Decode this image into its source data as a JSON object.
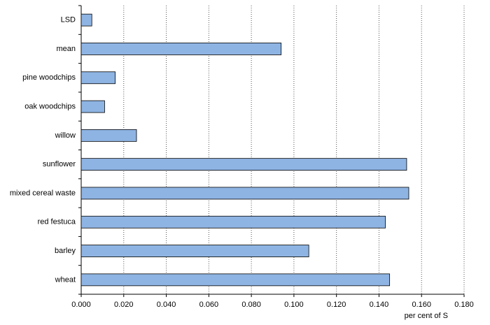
{
  "chart_data": {
    "type": "bar",
    "orientation": "horizontal",
    "x_label": "per cent of S",
    "categories": [
      "LSD",
      "mean",
      "pine woodchips",
      "oak woodchips",
      "willow",
      "sunflower",
      "mixed cereal waste",
      "red festuca",
      "barley",
      "wheat"
    ],
    "values": [
      0.005,
      0.094,
      0.016,
      0.011,
      0.026,
      0.153,
      0.154,
      0.143,
      0.107,
      0.145
    ],
    "color": "#8eb4e3",
    "xlim": [
      0,
      0.18
    ],
    "xticks": [
      {
        "value": 0,
        "label": "0.000"
      },
      {
        "value": 0.02,
        "label": "0.020"
      },
      {
        "value": 0.04,
        "label": "0.040"
      },
      {
        "value": 0.06,
        "label": "0.060"
      },
      {
        "value": 0.08,
        "label": "0.080"
      },
      {
        "value": 0.1,
        "label": "0.100"
      },
      {
        "value": 0.12,
        "label": "0.120"
      },
      {
        "value": 0.14,
        "label": "0.140"
      },
      {
        "value": 0.16,
        "label": "0.160"
      },
      {
        "value": 0.18,
        "label": "0.180"
      }
    ],
    "grid": true
  }
}
